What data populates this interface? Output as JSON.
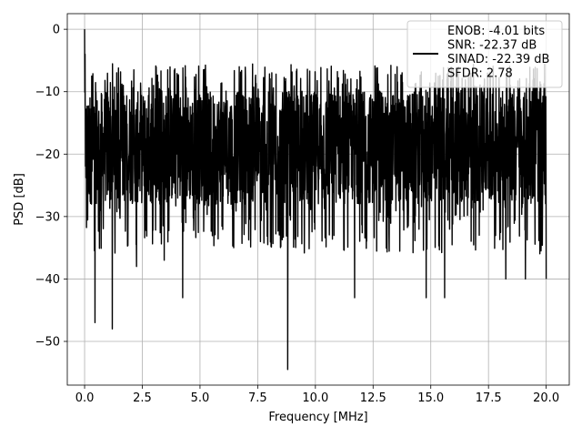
{
  "chart_data": {
    "type": "line",
    "title": "",
    "xlabel": "Frequency [MHz]",
    "ylabel": "PSD [dB]",
    "xlim": [
      -0.75,
      21.0
    ],
    "ylim": [
      -57,
      2.5
    ],
    "xticks": [
      0.0,
      2.5,
      5.0,
      7.5,
      10.0,
      12.5,
      15.0,
      17.5,
      20.0
    ],
    "xtick_labels": [
      "0.0",
      "2.5",
      "5.0",
      "7.5",
      "10.0",
      "12.5",
      "15.0",
      "17.5",
      "20.0"
    ],
    "yticks": [
      0,
      -10,
      -20,
      -30,
      -40,
      -50
    ],
    "ytick_labels": [
      "0",
      "−10",
      "−20",
      "−30",
      "−40",
      "−50"
    ],
    "grid": true,
    "legend_position": "top-right",
    "legend_lines": [
      "ENOB: -4.01 bits",
      "SNR: -22.37 dB",
      "SINAD: -22.39 dB",
      "SFDR: 2.78"
    ],
    "series": [
      {
        "color": "#000000",
        "x_range": [
          0,
          20
        ],
        "typical_range": [
          -28,
          -10
        ],
        "x": [
          0,
          0.02,
          0.05,
          0.1,
          0.3,
          0.45,
          1.2,
          2.25,
          3.45,
          4.25,
          6.7,
          8.6,
          8.8,
          11.7,
          14.8,
          15.6,
          15.7,
          17.1,
          18.25,
          19.1,
          20.0
        ],
        "y": [
          0,
          -4,
          -17,
          -25,
          -28,
          -47,
          -48,
          -38,
          -37,
          -43,
          -6,
          -13,
          -54.5,
          -43,
          -43,
          -43,
          -8,
          -33,
          -40,
          -40,
          -40
        ]
      }
    ]
  }
}
